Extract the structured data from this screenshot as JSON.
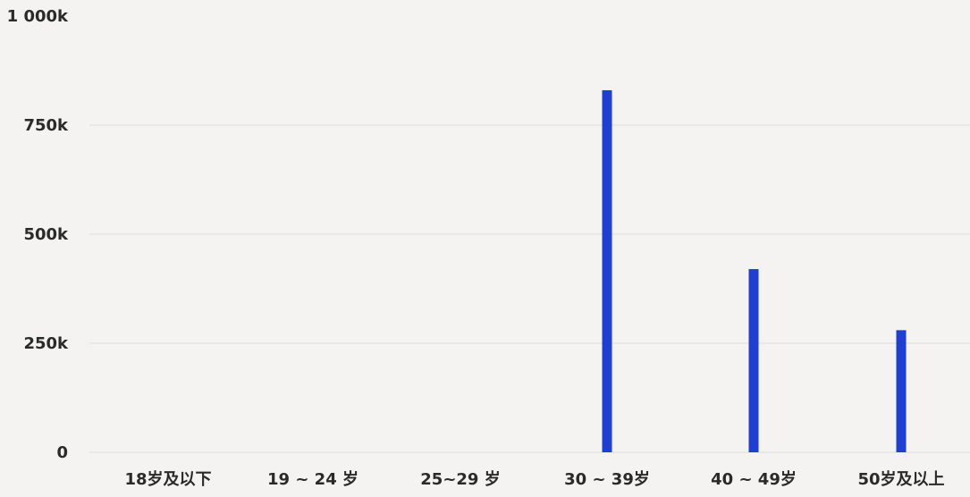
{
  "chart_data": {
    "type": "bar",
    "categories": [
      "18岁及以下",
      "19 ~ 24 岁",
      "25~29 岁",
      "30 ~ 39岁",
      "40 ~ 49岁",
      "50岁及以上"
    ],
    "values": [
      0,
      0,
      0,
      830000,
      420000,
      280000
    ],
    "title": "",
    "xlabel": "",
    "ylabel": "",
    "ylim": [
      0,
      1000000
    ],
    "yticks": [
      {
        "value": 0,
        "label": "0"
      },
      {
        "value": 250000,
        "label": "250k"
      },
      {
        "value": 500000,
        "label": "500k"
      },
      {
        "value": 750000,
        "label": "750k"
      },
      {
        "value": 1000000,
        "label": "1 000k"
      }
    ],
    "grid": true,
    "bar_color": "#1f3fd0",
    "grid_color": "#dcdcdc"
  }
}
